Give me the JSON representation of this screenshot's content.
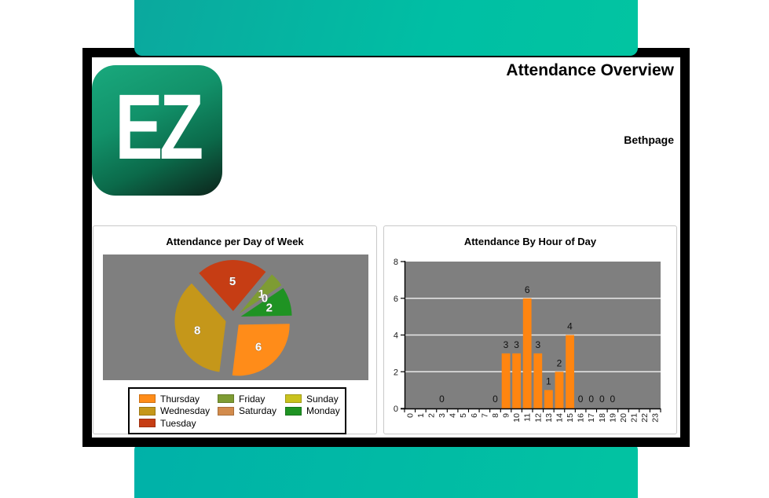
{
  "theme": {
    "accent_gradient_from": "#0ba89e",
    "accent_gradient_to": "#02c4a1",
    "card_border_color": "#000000",
    "plot_background": "#7f7f7f",
    "grid_color": "#e8e8e8"
  },
  "header": {
    "logo_text": "EZ",
    "title": "Attendance Overview",
    "subtitle": "Bethpage"
  },
  "chart_data": [
    {
      "type": "pie",
      "title": "Attendance per Day of Week",
      "total": 22,
      "label_color": "#ffffff",
      "slices_clockwise": [
        {
          "label": "Tuesday",
          "value": 5,
          "color": "#c63d14"
        },
        {
          "label": "Friday",
          "value": 1,
          "color": "#7e9c33"
        },
        {
          "label": "Saturday",
          "value": 0,
          "color": "#d28b4c"
        },
        {
          "label": "Sunday",
          "value": 0,
          "color": "#c9c21e"
        },
        {
          "label": "Monday",
          "value": 2,
          "color": "#1f9323"
        },
        {
          "label": "Thursday",
          "value": 6,
          "color": "#ff8c19"
        },
        {
          "label": "Wednesday",
          "value": 8,
          "color": "#c5971a"
        }
      ],
      "legend_order": [
        "Thursday",
        "Friday",
        "Sunday",
        "Wednesday",
        "Saturday",
        "Monday",
        "Tuesday"
      ],
      "legend_position": "bottom"
    },
    {
      "type": "bar",
      "title": "Attendance By Hour of Day",
      "xlabel": "",
      "ylabel": "",
      "categories": [
        "0",
        "1",
        "2",
        "3",
        "4",
        "5",
        "6",
        "7",
        "8",
        "9",
        "10",
        "11",
        "12",
        "13",
        "14",
        "15",
        "16",
        "17",
        "18",
        "19",
        "20",
        "21",
        "22",
        "23"
      ],
      "values": [
        null,
        null,
        null,
        0,
        null,
        null,
        null,
        null,
        0,
        3,
        3,
        6,
        3,
        1,
        2,
        4,
        0,
        0,
        0,
        0,
        null,
        null,
        null,
        null
      ],
      "bar_color": "#ff8510",
      "ylim": [
        0,
        8
      ],
      "yticks": [
        0,
        2,
        4,
        6,
        8
      ],
      "grid": true,
      "tick_label_color": "#1a1a1a",
      "value_label_color": "#111111"
    }
  ]
}
